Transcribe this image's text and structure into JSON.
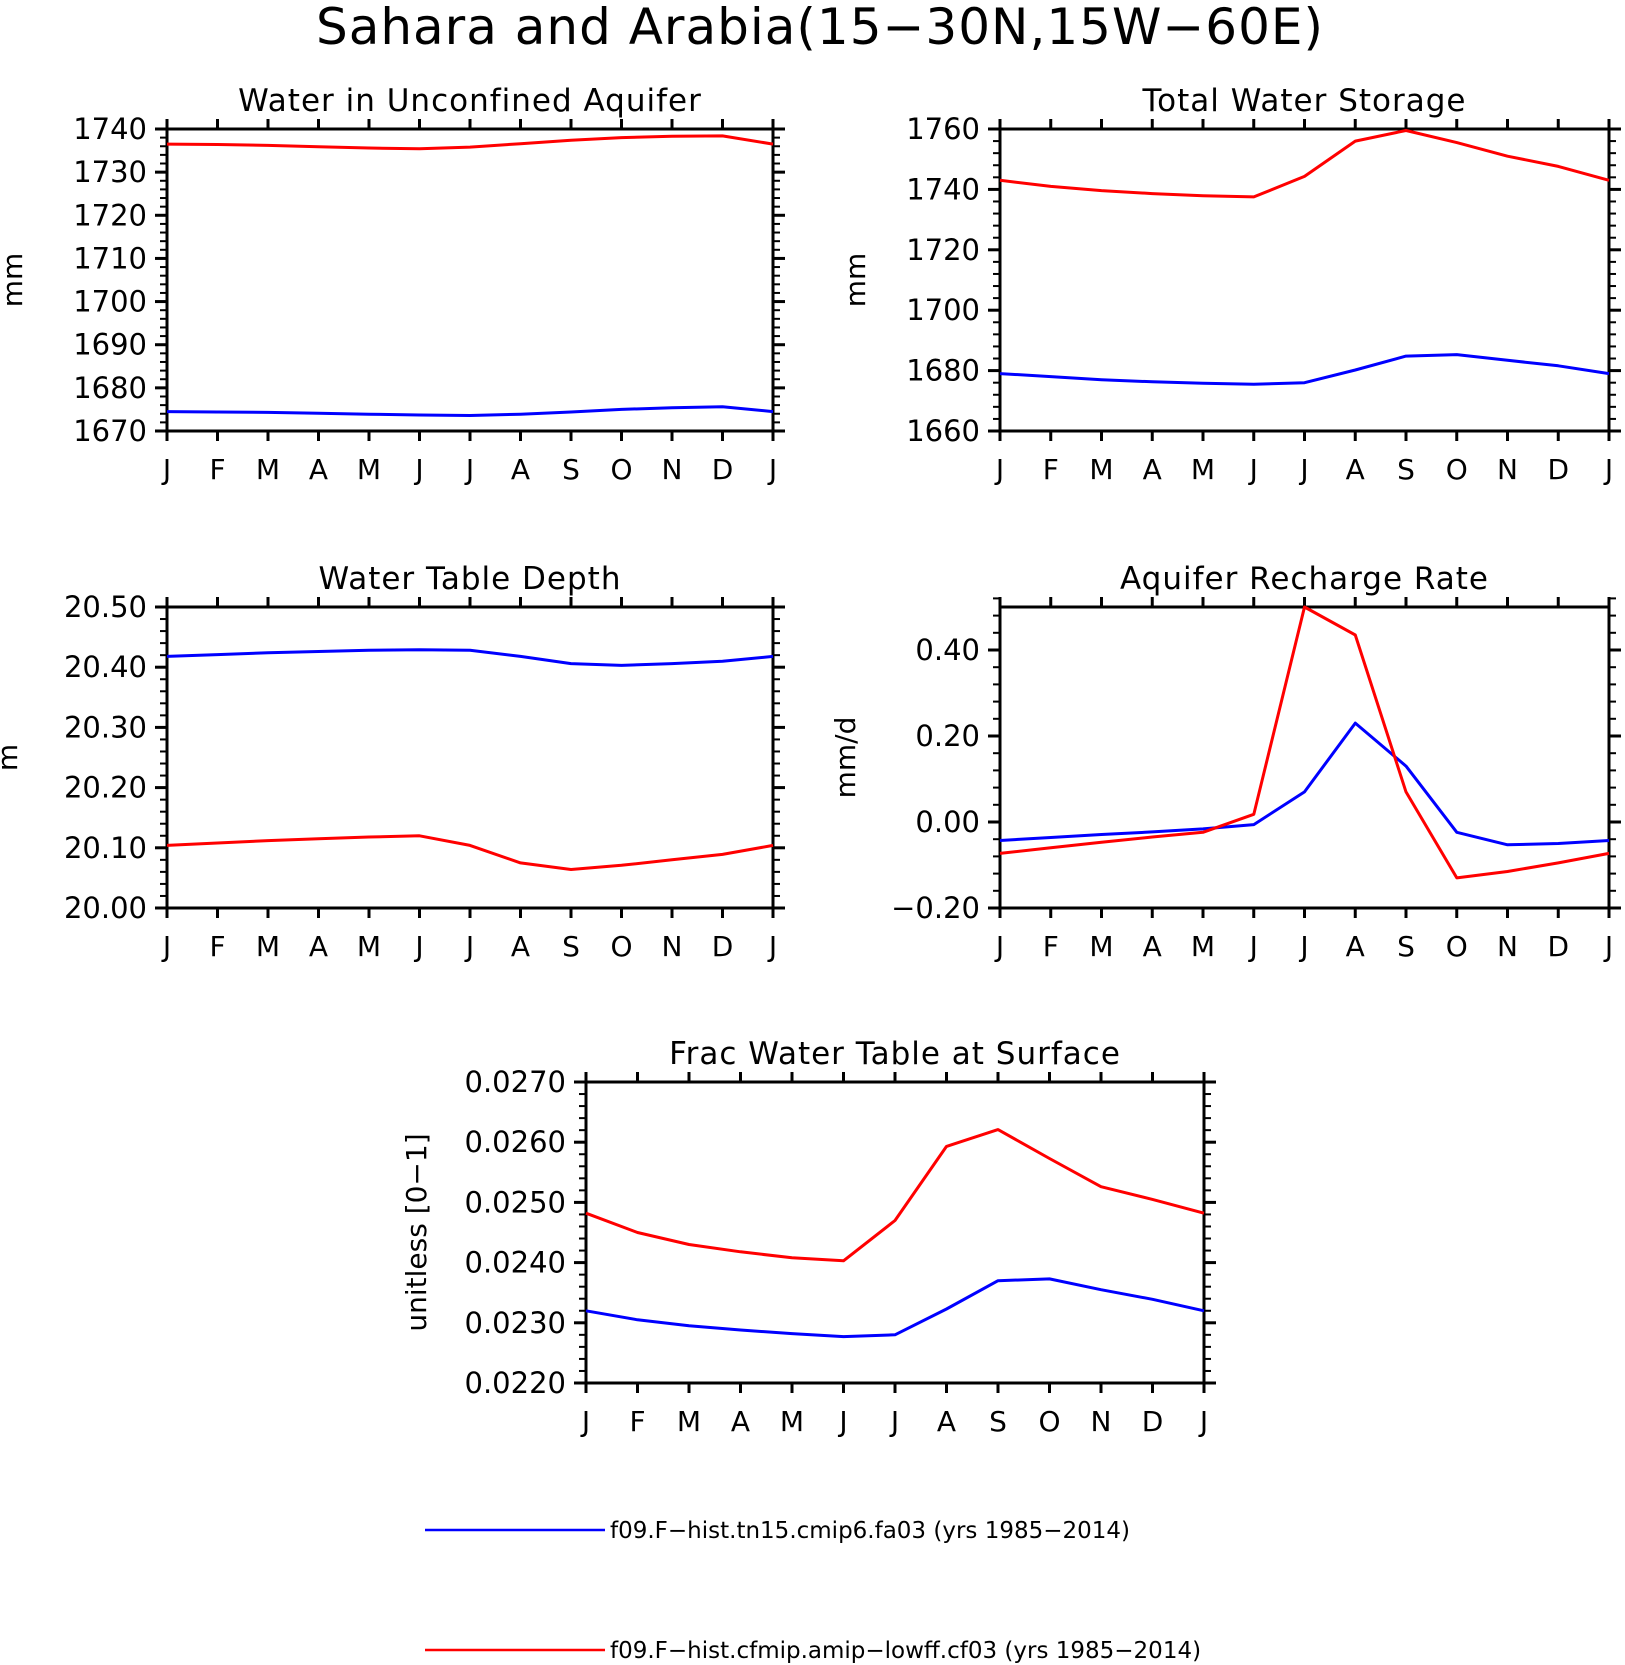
{
  "figure": {
    "title": "Sahara and Arabia(15−30N,15W−60E)"
  },
  "colors": {
    "series_0": "#0000ff",
    "series_1": "#ff0000",
    "axis": "#000000"
  },
  "legend": [
    {
      "label": "f09.F−hist.tn15.cmip6.fa03 (yrs 1985−2014)",
      "color": "#0000ff"
    },
    {
      "label": "f09.F−hist.cfmip.amip−lowff.cf03 (yrs 1985−2014)",
      "color": "#ff0000"
    }
  ],
  "chart_data": [
    {
      "type": "line",
      "title": "Water in Unconfined Aquifer",
      "ylabel": "mm",
      "xlabel": "",
      "categories": [
        "J",
        "F",
        "M",
        "A",
        "M",
        "J",
        "J",
        "A",
        "S",
        "O",
        "N",
        "D",
        "J"
      ],
      "ylim": [
        1670,
        1740
      ],
      "yticks": [
        1670,
        1680,
        1690,
        1700,
        1710,
        1720,
        1730,
        1740
      ],
      "ytick_labels": [
        "1670",
        "1680",
        "1690",
        "1700",
        "1710",
        "1720",
        "1730",
        "1740"
      ],
      "series": [
        {
          "values": [
            1674.5,
            1674.4,
            1674.3,
            1674.1,
            1673.9,
            1673.7,
            1673.6,
            1673.9,
            1674.4,
            1675.0,
            1675.4,
            1675.6,
            1674.5
          ]
        },
        {
          "values": [
            1736.5,
            1736.4,
            1736.2,
            1735.9,
            1735.6,
            1735.4,
            1735.8,
            1736.6,
            1737.4,
            1738.0,
            1738.3,
            1738.4,
            1736.5
          ]
        }
      ]
    },
    {
      "type": "line",
      "title": "Total Water Storage",
      "ylabel": "mm",
      "xlabel": "",
      "categories": [
        "J",
        "F",
        "M",
        "A",
        "M",
        "J",
        "J",
        "A",
        "S",
        "O",
        "N",
        "D",
        "J"
      ],
      "ylim": [
        1660,
        1760
      ],
      "yticks": [
        1660,
        1680,
        1700,
        1720,
        1740,
        1760
      ],
      "ytick_labels": [
        "1660",
        "1680",
        "1700",
        "1720",
        "1740",
        "1760"
      ],
      "series": [
        {
          "values": [
            1679.0,
            1678.0,
            1677.0,
            1676.3,
            1675.8,
            1675.5,
            1676.0,
            1680.2,
            1684.8,
            1685.3,
            1683.4,
            1681.6,
            1679.0
          ]
        },
        {
          "values": [
            1743.0,
            1741.0,
            1739.6,
            1738.6,
            1737.9,
            1737.5,
            1744.3,
            1756.0,
            1759.5,
            1755.5,
            1751.0,
            1747.6,
            1743.0
          ]
        }
      ]
    },
    {
      "type": "line",
      "title": "Water Table Depth",
      "ylabel": "m",
      "xlabel": "",
      "categories": [
        "J",
        "F",
        "M",
        "A",
        "M",
        "J",
        "J",
        "A",
        "S",
        "O",
        "N",
        "D",
        "J"
      ],
      "ylim": [
        20.0,
        20.5
      ],
      "yticks": [
        20.0,
        20.1,
        20.2,
        20.3,
        20.4,
        20.5
      ],
      "ytick_labels": [
        "20.00",
        "20.10",
        "20.20",
        "20.30",
        "20.40",
        "20.50"
      ],
      "series": [
        {
          "values": [
            20.418,
            20.421,
            20.424,
            20.426,
            20.428,
            20.429,
            20.428,
            20.418,
            20.406,
            20.403,
            20.406,
            20.41,
            20.418
          ]
        },
        {
          "values": [
            20.104,
            20.108,
            20.112,
            20.115,
            20.118,
            20.12,
            20.104,
            20.075,
            20.064,
            20.071,
            20.08,
            20.089,
            20.104
          ]
        }
      ]
    },
    {
      "type": "line",
      "title": "Aquifer Recharge Rate",
      "ylabel": "mm/d",
      "xlabel": "",
      "categories": [
        "J",
        "F",
        "M",
        "A",
        "M",
        "J",
        "J",
        "A",
        "S",
        "O",
        "N",
        "D",
        "J"
      ],
      "ylim": [
        -0.2,
        0.5
      ],
      "yticks": [
        -0.2,
        0.0,
        0.2,
        0.4
      ],
      "ytick_labels": [
        "−0.20",
        "0.00",
        "0.20",
        "0.40"
      ],
      "series": [
        {
          "values": [
            -0.043,
            -0.036,
            -0.029,
            -0.023,
            -0.016,
            -0.006,
            0.07,
            0.23,
            0.13,
            -0.024,
            -0.053,
            -0.05,
            -0.043
          ]
        },
        {
          "values": [
            -0.073,
            -0.06,
            -0.047,
            -0.035,
            -0.024,
            0.018,
            0.5,
            0.435,
            0.07,
            -0.13,
            -0.115,
            -0.095,
            -0.073
          ]
        }
      ]
    },
    {
      "type": "line",
      "title": "Frac Water Table at Surface",
      "ylabel": "unitless [0−1]",
      "xlabel": "",
      "categories": [
        "J",
        "F",
        "M",
        "A",
        "M",
        "J",
        "J",
        "A",
        "S",
        "O",
        "N",
        "D",
        "J"
      ],
      "ylim": [
        0.022,
        0.027
      ],
      "yticks": [
        0.022,
        0.023,
        0.024,
        0.025,
        0.026,
        0.027
      ],
      "ytick_labels": [
        "0.0220",
        "0.0230",
        "0.0240",
        "0.0250",
        "0.0260",
        "0.0270"
      ],
      "series": [
        {
          "values": [
            0.0232,
            0.02305,
            0.02295,
            0.02288,
            0.02282,
            0.02277,
            0.0228,
            0.02323,
            0.0237,
            0.02373,
            0.02355,
            0.02339,
            0.0232
          ]
        },
        {
          "values": [
            0.02482,
            0.0245,
            0.0243,
            0.02418,
            0.02408,
            0.02403,
            0.0247,
            0.02593,
            0.02621,
            0.02573,
            0.02526,
            0.02505,
            0.02482
          ]
        }
      ]
    }
  ]
}
